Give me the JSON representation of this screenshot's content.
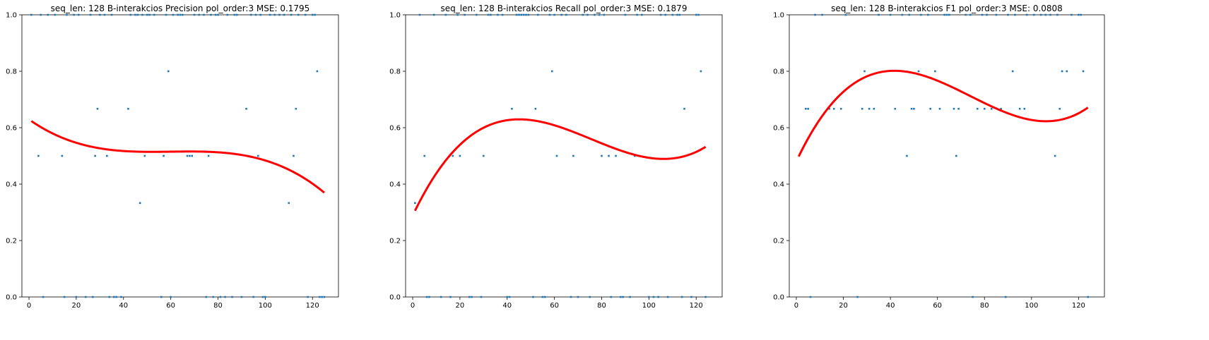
{
  "chart_data": [
    {
      "type": "scatter",
      "title": "seq_len: 128    B-interakcios   Precision   pol_order:3   MSE: 0.1795",
      "xlim": [
        -3,
        131
      ],
      "ylim": [
        0,
        1
      ],
      "x_ticks": [
        "0",
        "20",
        "40",
        "60",
        "80",
        "100",
        "120"
      ],
      "y_ticks": [
        "0.0",
        "0.2",
        "0.4",
        "0.6",
        "0.8",
        "1.0"
      ],
      "grid": false,
      "point_color": "#1f77b4",
      "fit_color": "#ff0000",
      "fit_coeffs": [
        0.6294,
        -0.005931,
        0.0001005,
        -5.574e-07
      ],
      "fit_range": [
        1,
        125
      ],
      "points": [
        [
          1,
          1
        ],
        [
          4,
          0.5
        ],
        [
          5,
          1
        ],
        [
          6,
          0
        ],
        [
          8,
          1
        ],
        [
          11,
          1
        ],
        [
          14,
          0.5
        ],
        [
          15,
          0
        ],
        [
          16,
          1
        ],
        [
          19,
          1
        ],
        [
          20,
          0
        ],
        [
          21,
          1
        ],
        [
          24,
          0
        ],
        [
          26,
          1
        ],
        [
          27,
          0
        ],
        [
          28,
          0.5
        ],
        [
          29,
          0.667
        ],
        [
          30,
          1
        ],
        [
          32,
          1
        ],
        [
          33,
          0.5
        ],
        [
          34,
          0
        ],
        [
          35,
          1
        ],
        [
          36,
          0
        ],
        [
          37,
          0
        ],
        [
          39,
          0
        ],
        [
          42,
          0.667
        ],
        [
          43,
          1
        ],
        [
          45,
          1
        ],
        [
          46,
          1
        ],
        [
          47,
          0.333
        ],
        [
          48,
          1
        ],
        [
          49,
          0.5
        ],
        [
          50,
          1
        ],
        [
          51,
          1
        ],
        [
          53,
          1
        ],
        [
          56,
          0
        ],
        [
          57,
          0.5
        ],
        [
          58,
          1
        ],
        [
          59,
          0.8
        ],
        [
          60,
          0
        ],
        [
          61,
          1
        ],
        [
          63,
          1
        ],
        [
          64,
          1
        ],
        [
          65,
          1
        ],
        [
          67,
          0.5
        ],
        [
          68,
          0.5
        ],
        [
          69,
          0.5
        ],
        [
          70,
          1
        ],
        [
          72,
          1
        ],
        [
          74,
          1
        ],
        [
          75,
          0
        ],
        [
          76,
          0.5
        ],
        [
          77,
          1
        ],
        [
          78,
          0
        ],
        [
          79,
          1
        ],
        [
          80,
          1
        ],
        [
          81,
          0
        ],
        [
          83,
          0
        ],
        [
          84,
          1
        ],
        [
          86,
          0
        ],
        [
          87,
          1
        ],
        [
          88,
          1
        ],
        [
          90,
          0
        ],
        [
          92,
          0.667
        ],
        [
          94,
          1
        ],
        [
          95,
          0
        ],
        [
          96,
          1
        ],
        [
          97,
          0.5
        ],
        [
          98,
          1
        ],
        [
          99,
          0
        ],
        [
          100,
          0
        ],
        [
          102,
          1
        ],
        [
          104,
          1
        ],
        [
          106,
          1
        ],
        [
          108,
          1
        ],
        [
          110,
          0.333
        ],
        [
          111,
          1
        ],
        [
          112,
          0.5
        ],
        [
          113,
          0.667
        ],
        [
          114,
          1
        ],
        [
          117,
          1
        ],
        [
          118,
          0
        ],
        [
          120,
          1
        ],
        [
          121,
          1
        ],
        [
          122,
          0.8
        ],
        [
          123,
          0
        ],
        [
          124,
          0
        ],
        [
          125,
          0
        ]
      ]
    },
    {
      "type": "scatter",
      "title": "seq_len: 128    B-interakcios   Recall   pol_order:3   MSE: 0.1879",
      "xlim": [
        -3,
        131
      ],
      "ylim": [
        0,
        1
      ],
      "x_ticks": [
        "0",
        "20",
        "40",
        "60",
        "80",
        "100",
        "120"
      ],
      "y_ticks": [
        "0.0",
        "0.2",
        "0.4",
        "0.6",
        "0.8",
        "1.0"
      ],
      "grid": false,
      "point_color": "#1f77b4",
      "fit_color": "#ff0000",
      "fit_coeffs": [
        0.2883,
        0.01764,
        -0.0002788,
        1.229e-06
      ],
      "fit_range": [
        1,
        124
      ],
      "points": [
        [
          1,
          0.333
        ],
        [
          3,
          1
        ],
        [
          5,
          0.5
        ],
        [
          6,
          0
        ],
        [
          7,
          0
        ],
        [
          9,
          1
        ],
        [
          12,
          0
        ],
        [
          14,
          1
        ],
        [
          16,
          0
        ],
        [
          17,
          0.5
        ],
        [
          19,
          1
        ],
        [
          20,
          0.5
        ],
        [
          22,
          1
        ],
        [
          24,
          0
        ],
        [
          25,
          0
        ],
        [
          27,
          1
        ],
        [
          29,
          0
        ],
        [
          30,
          0.5
        ],
        [
          32,
          1
        ],
        [
          33,
          1
        ],
        [
          36,
          1
        ],
        [
          38,
          1
        ],
        [
          40,
          0
        ],
        [
          41,
          0
        ],
        [
          42,
          0.667
        ],
        [
          44,
          1
        ],
        [
          45,
          1
        ],
        [
          46,
          1
        ],
        [
          47,
          1
        ],
        [
          48,
          1
        ],
        [
          49,
          1
        ],
        [
          51,
          0
        ],
        [
          52,
          0.667
        ],
        [
          53,
          1
        ],
        [
          55,
          0
        ],
        [
          56,
          0
        ],
        [
          58,
          1
        ],
        [
          59,
          0.8
        ],
        [
          60,
          1
        ],
        [
          61,
          0.5
        ],
        [
          63,
          1
        ],
        [
          65,
          1
        ],
        [
          67,
          0
        ],
        [
          68,
          0.5
        ],
        [
          70,
          0
        ],
        [
          72,
          1
        ],
        [
          74,
          1
        ],
        [
          75,
          0
        ],
        [
          77,
          1
        ],
        [
          79,
          1
        ],
        [
          80,
          0.5
        ],
        [
          81,
          1
        ],
        [
          83,
          0.5
        ],
        [
          84,
          0
        ],
        [
          86,
          0.5
        ],
        [
          88,
          0
        ],
        [
          89,
          0
        ],
        [
          90,
          1
        ],
        [
          92,
          0
        ],
        [
          94,
          0.5
        ],
        [
          95,
          1
        ],
        [
          97,
          1
        ],
        [
          100,
          0
        ],
        [
          102,
          0
        ],
        [
          104,
          0
        ],
        [
          105,
          1
        ],
        [
          107,
          1
        ],
        [
          108,
          0
        ],
        [
          110,
          1
        ],
        [
          112,
          1
        ],
        [
          113,
          1
        ],
        [
          114,
          0
        ],
        [
          115,
          0.667
        ],
        [
          118,
          0
        ],
        [
          120,
          1
        ],
        [
          121,
          1
        ],
        [
          122,
          0.8
        ],
        [
          124,
          0
        ]
      ]
    },
    {
      "type": "scatter",
      "title": "seq_len: 128    B-interakcios   F1   pol_order:3   MSE: 0.0808",
      "xlim": [
        -3,
        131
      ],
      "ylim": [
        0,
        1
      ],
      "x_ticks": [
        "0",
        "20",
        "40",
        "60",
        "80",
        "100",
        "120"
      ],
      "y_ticks": [
        "0.0",
        "0.2",
        "0.4",
        "0.6",
        "0.8",
        "1.0"
      ],
      "grid": false,
      "point_color": "#1f77b4",
      "fit_color": "#ff0000",
      "fit_coeffs": [
        0.4804,
        0.01773,
        -0.0002961,
        1.335e-06
      ],
      "fit_range": [
        1,
        124
      ],
      "points": [
        [
          4,
          0.667
        ],
        [
          5,
          0.667
        ],
        [
          6,
          0
        ],
        [
          8,
          1
        ],
        [
          11,
          1
        ],
        [
          14,
          0.667
        ],
        [
          16,
          0.667
        ],
        [
          19,
          0.667
        ],
        [
          21,
          1
        ],
        [
          26,
          0
        ],
        [
          28,
          0.667
        ],
        [
          29,
          0.8
        ],
        [
          31,
          0.667
        ],
        [
          33,
          0.667
        ],
        [
          35,
          1
        ],
        [
          40,
          1
        ],
        [
          42,
          0.667
        ],
        [
          45,
          1
        ],
        [
          47,
          0.5
        ],
        [
          48,
          1
        ],
        [
          49,
          0.667
        ],
        [
          50,
          0.667
        ],
        [
          52,
          0.8
        ],
        [
          53,
          1
        ],
        [
          56,
          1
        ],
        [
          57,
          0.667
        ],
        [
          59,
          0.8
        ],
        [
          61,
          0.667
        ],
        [
          63,
          1
        ],
        [
          64,
          1
        ],
        [
          65,
          1
        ],
        [
          67,
          0.667
        ],
        [
          68,
          0.5
        ],
        [
          69,
          0.667
        ],
        [
          72,
          1
        ],
        [
          74,
          1
        ],
        [
          75,
          0
        ],
        [
          77,
          0.667
        ],
        [
          79,
          1
        ],
        [
          80,
          0.667
        ],
        [
          81,
          1
        ],
        [
          83,
          0.667
        ],
        [
          85,
          1
        ],
        [
          87,
          0.667
        ],
        [
          89,
          0
        ],
        [
          90,
          1
        ],
        [
          92,
          0.8
        ],
        [
          93,
          1
        ],
        [
          95,
          0.667
        ],
        [
          97,
          0.667
        ],
        [
          98,
          1
        ],
        [
          101,
          1
        ],
        [
          104,
          1
        ],
        [
          106,
          1
        ],
        [
          108,
          1
        ],
        [
          110,
          0.5
        ],
        [
          111,
          1
        ],
        [
          112,
          0.667
        ],
        [
          113,
          0.8
        ],
        [
          115,
          0.8
        ],
        [
          117,
          1
        ],
        [
          120,
          1
        ],
        [
          121,
          1
        ],
        [
          122,
          0.8
        ],
        [
          124,
          0
        ]
      ]
    }
  ]
}
